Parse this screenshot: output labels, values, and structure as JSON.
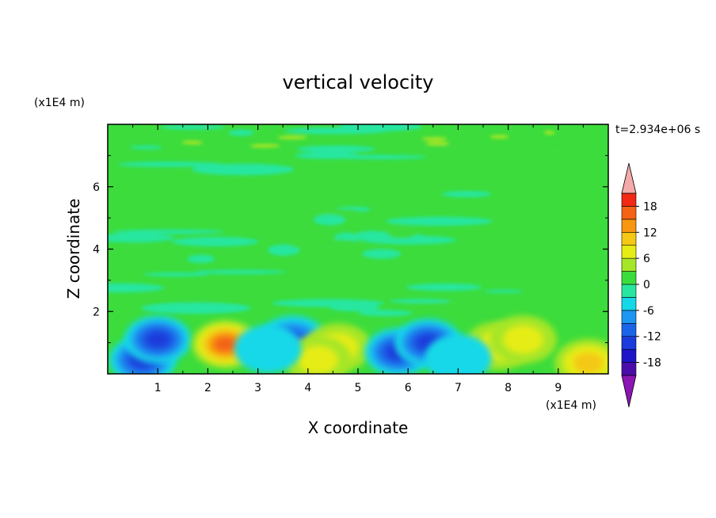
{
  "chart_data": {
    "type": "heatmap",
    "title": "vertical velocity",
    "xlabel": "X coordinate",
    "ylabel": "Z coordinate",
    "x_unit": "(x1E4 m)",
    "y_unit": "(x1E4 m)",
    "time_label": "t=2.934e+06 s",
    "xlim": [
      0,
      10
    ],
    "ylim": [
      0,
      8
    ],
    "x_ticks": [
      1,
      2,
      3,
      4,
      5,
      6,
      7,
      8,
      9
    ],
    "y_ticks": [
      2,
      4,
      6
    ],
    "x_tick_labels": [
      "1",
      "2",
      "3",
      "4",
      "5",
      "6",
      "7",
      "8",
      "9"
    ],
    "y_tick_labels": [
      "2",
      "4",
      "6"
    ],
    "colorbar": {
      "levels": [
        -21,
        -18,
        -15,
        -12,
        -9,
        -6,
        -3,
        0,
        3,
        6,
        9,
        12,
        15,
        18,
        21
      ],
      "tick_values": [
        -18,
        -12,
        -6,
        0,
        6,
        12,
        18
      ],
      "tick_labels": [
        "-18",
        "-12",
        "-6",
        "0",
        "6",
        "12",
        "18"
      ],
      "colors": [
        "#4a0ca8",
        "#1e14c8",
        "#1a3cdc",
        "#1a64e8",
        "#1c96f0",
        "#14d8e8",
        "#28e6a0",
        "#3cdc3c",
        "#a6e628",
        "#e6ec14",
        "#f4c814",
        "#f89610",
        "#f46414",
        "#f02814"
      ],
      "under_color": "#8c14b4",
      "over_color": "#f4aaaa"
    },
    "features": [
      {
        "x": 0.7,
        "z": 0.45,
        "w": -14
      },
      {
        "x": 1.0,
        "z": 1.1,
        "w": -13
      },
      {
        "x": 2.35,
        "z": 0.95,
        "w": 15
      },
      {
        "x": 3.7,
        "z": 1.1,
        "w": -9
      },
      {
        "x": 4.6,
        "z": 0.85,
        "w": 8
      },
      {
        "x": 4.2,
        "z": 0.45,
        "w": 7
      },
      {
        "x": 5.8,
        "z": 0.7,
        "w": -14
      },
      {
        "x": 6.4,
        "z": 1.0,
        "w": -12
      },
      {
        "x": 7.8,
        "z": 0.9,
        "w": 7
      },
      {
        "x": 8.3,
        "z": 1.1,
        "w": 7
      },
      {
        "x": 9.6,
        "z": 0.35,
        "w": 9
      },
      {
        "x": 3.2,
        "z": 0.8,
        "w": -5
      },
      {
        "x": 7.0,
        "z": 0.5,
        "w": -4
      }
    ]
  }
}
